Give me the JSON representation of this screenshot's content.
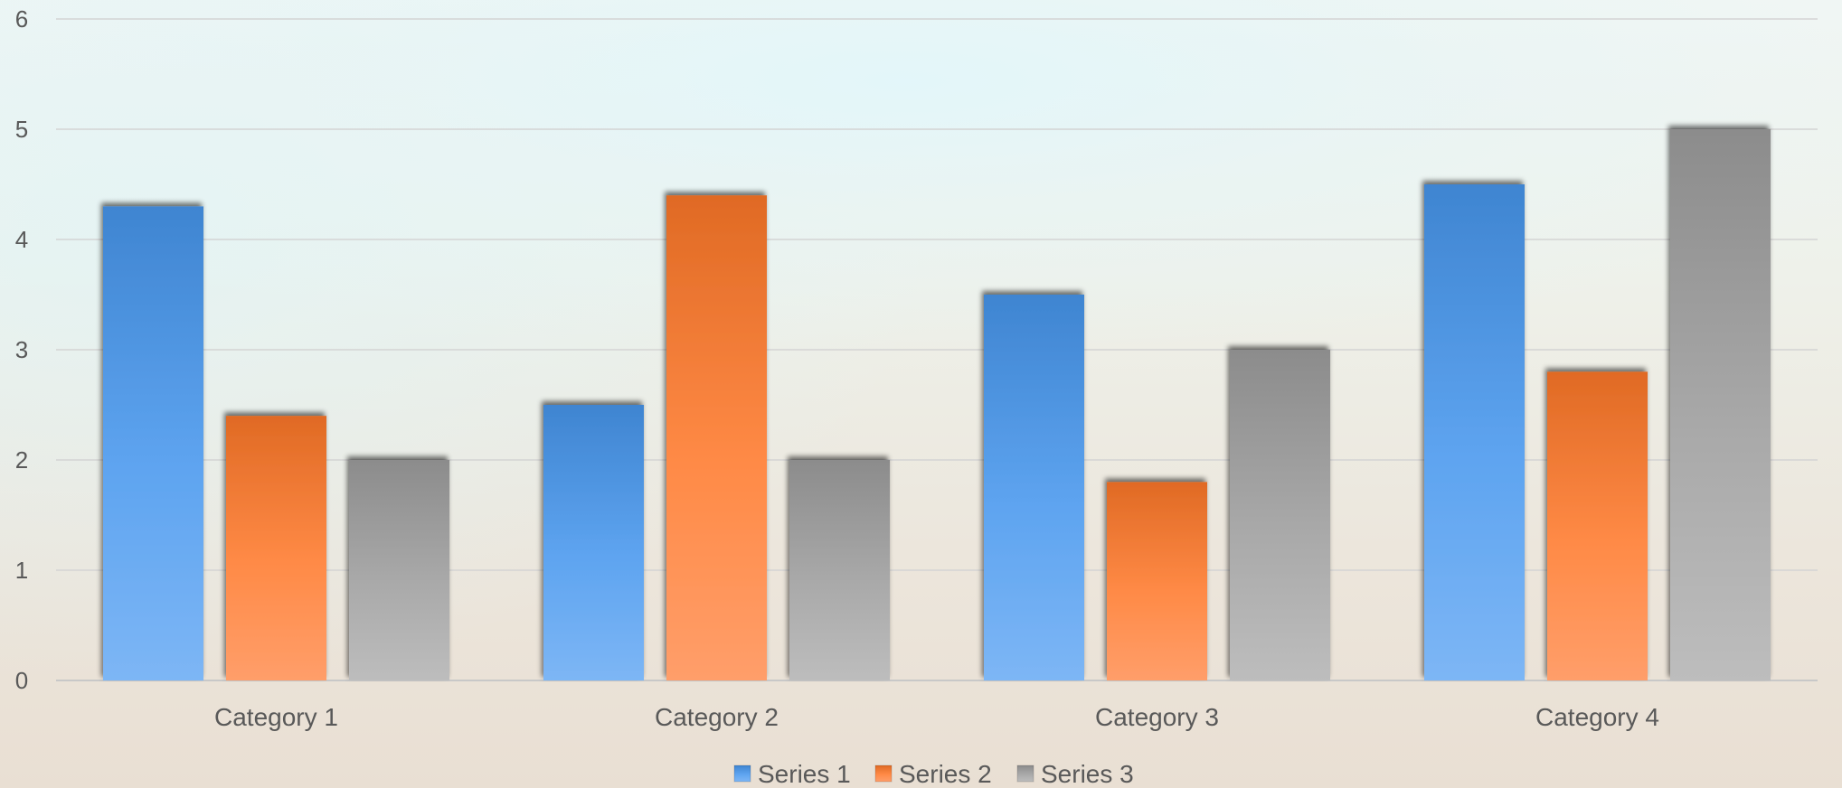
{
  "chart_data": {
    "type": "bar",
    "categories": [
      "Category 1",
      "Category 2",
      "Category 3",
      "Category 4"
    ],
    "series": [
      {
        "name": "Series 1",
        "values": [
          4.3,
          2.5,
          3.5,
          4.5
        ],
        "color": "#4a90d9"
      },
      {
        "name": "Series 2",
        "values": [
          2.4,
          4.4,
          1.8,
          2.8
        ],
        "color": "#ed7d31"
      },
      {
        "name": "Series 3",
        "values": [
          2.0,
          2.0,
          3.0,
          5.0
        ],
        "color": "#a5a5a5"
      }
    ],
    "title": "",
    "xlabel": "",
    "ylabel": "",
    "ylim": [
      0,
      6
    ],
    "yticks": [
      "0",
      "1",
      "2",
      "3",
      "4",
      "5",
      "6"
    ],
    "grid": true,
    "legend_position": "bottom"
  }
}
